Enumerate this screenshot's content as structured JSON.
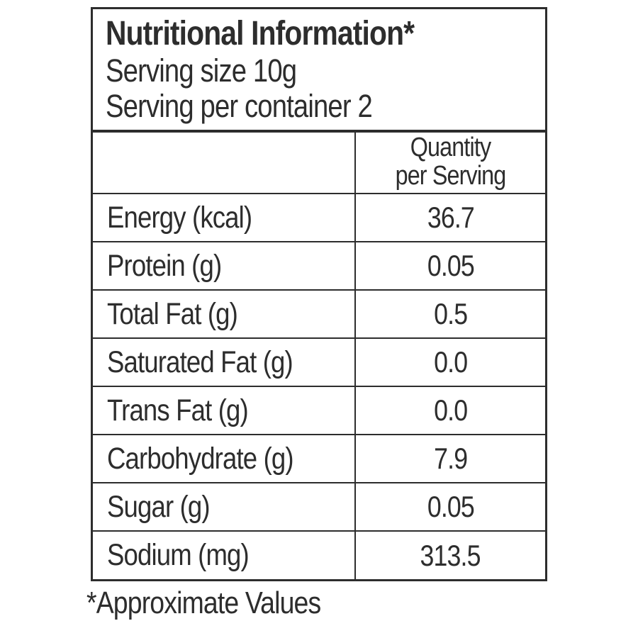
{
  "label": {
    "title": "Nutritional Information*",
    "serving_size": "Serving size 10g",
    "serving_per_container": "Serving per container 2",
    "column_header": {
      "line1": "Quantity",
      "line2": "per Serving"
    },
    "rows": [
      {
        "name": "Energy (kcal)",
        "value": "36.7"
      },
      {
        "name": "Protein (g)",
        "value": "0.05"
      },
      {
        "name": "Total Fat (g)",
        "value": "0.5"
      },
      {
        "name": "Saturated Fat (g)",
        "value": "0.0"
      },
      {
        "name": "Trans Fat (g)",
        "value": "0.0"
      },
      {
        "name": "Carbohydrate (g)",
        "value": "7.9"
      },
      {
        "name": "Sugar (g)",
        "value": "0.05"
      },
      {
        "name": "Sodium (mg)",
        "value": "313.5"
      }
    ],
    "footnote": "*Approximate Values",
    "colors": {
      "text": "#2d2d2d",
      "border": "#2d2d2d",
      "background": "#ffffff"
    }
  }
}
